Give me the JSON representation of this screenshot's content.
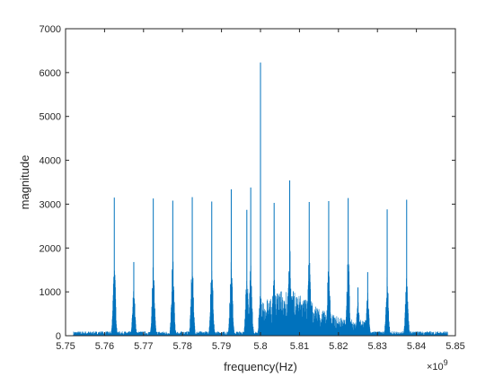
{
  "chart_data": {
    "type": "line",
    "title": "",
    "xlabel": "frequency(Hz)",
    "ylabel": "magnitude",
    "x_exponent_base": "×10",
    "x_exponent_power": "9",
    "xlim": [
      5.75,
      5.85
    ],
    "ylim": [
      0,
      7000
    ],
    "xticks": [
      5.75,
      5.76,
      5.77,
      5.78,
      5.79,
      5.8,
      5.81,
      5.82,
      5.83,
      5.84,
      5.85
    ],
    "xtick_labels": [
      "5.75",
      "5.76",
      "5.77",
      "5.78",
      "5.79",
      "5.8",
      "5.81",
      "5.82",
      "5.83",
      "5.84",
      "5.85"
    ],
    "yticks": [
      0,
      1000,
      2000,
      3000,
      4000,
      5000,
      6000,
      7000
    ],
    "ytick_labels": [
      "0",
      "1000",
      "2000",
      "3000",
      "4000",
      "5000",
      "6000",
      "7000"
    ],
    "grid": false,
    "series": [
      {
        "color": "#0072BD",
        "peaks": [
          {
            "x": 5.7625,
            "y": 3150,
            "base": 1750
          },
          {
            "x": 5.7675,
            "y": 1680,
            "base": 1100
          },
          {
            "x": 5.7725,
            "y": 3130,
            "base": 1700
          },
          {
            "x": 5.7775,
            "y": 3080,
            "base": 1850
          },
          {
            "x": 5.7825,
            "y": 3160,
            "base": 1800
          },
          {
            "x": 5.7875,
            "y": 3060,
            "base": 1750
          },
          {
            "x": 5.7925,
            "y": 3340,
            "base": 1800
          },
          {
            "x": 5.7965,
            "y": 2870,
            "base": 1500
          },
          {
            "x": 5.7975,
            "y": 3380,
            "base": 1650
          },
          {
            "x": 5.8,
            "y": 6230,
            "base": 1000
          },
          {
            "x": 5.8035,
            "y": 3030,
            "base": 1400
          },
          {
            "x": 5.8075,
            "y": 3540,
            "base": 2100
          },
          {
            "x": 5.8125,
            "y": 3050,
            "base": 2000
          },
          {
            "x": 5.8175,
            "y": 3070,
            "base": 1850
          },
          {
            "x": 5.8225,
            "y": 3140,
            "base": 1950
          },
          {
            "x": 5.825,
            "y": 1100,
            "base": 900
          },
          {
            "x": 5.8275,
            "y": 1450,
            "base": 1000
          },
          {
            "x": 5.8325,
            "y": 2880,
            "base": 1400
          },
          {
            "x": 5.8375,
            "y": 3100,
            "base": 1500
          }
        ]
      }
    ]
  }
}
